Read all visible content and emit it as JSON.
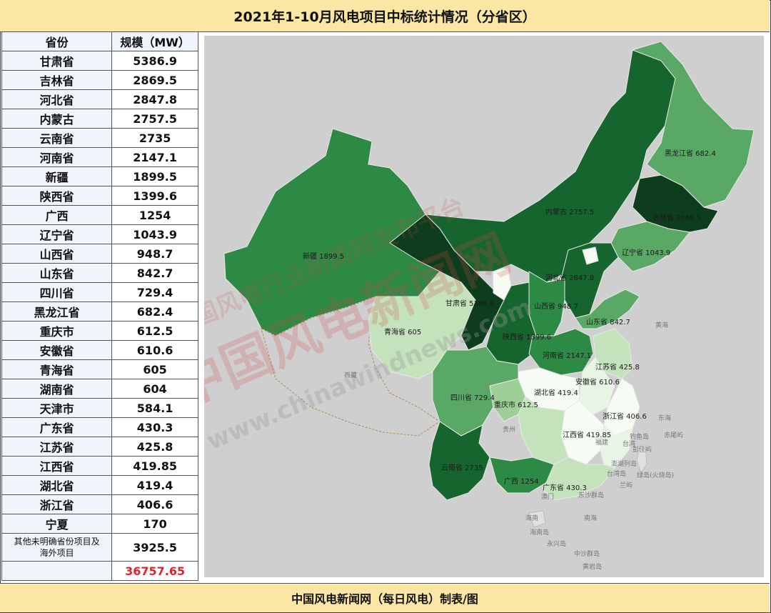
{
  "title": "2021年1-10月风电项目中标统计情况（分省区）",
  "footer": "中国风电新闻网（每日风电）制表/图",
  "table": {
    "col_province": "省份",
    "col_scale": "规模（MW）",
    "rows": [
      {
        "province": "甘肃省",
        "value": "5386.9"
      },
      {
        "province": "吉林省",
        "value": "2869.5"
      },
      {
        "province": "河北省",
        "value": "2847.8"
      },
      {
        "province": "内蒙古",
        "value": "2757.5"
      },
      {
        "province": "云南省",
        "value": "2735"
      },
      {
        "province": "河南省",
        "value": "2147.1"
      },
      {
        "province": "新疆",
        "value": "1899.5"
      },
      {
        "province": "陕西省",
        "value": "1399.6"
      },
      {
        "province": "广西",
        "value": "1254"
      },
      {
        "province": "辽宁省",
        "value": "1043.9"
      },
      {
        "province": "山西省",
        "value": "948.7"
      },
      {
        "province": "山东省",
        "value": "842.7"
      },
      {
        "province": "四川省",
        "value": "729.4"
      },
      {
        "province": "黑龙江省",
        "value": "682.4"
      },
      {
        "province": "重庆市",
        "value": "612.5"
      },
      {
        "province": "安徽省",
        "value": "610.6"
      },
      {
        "province": "青海省",
        "value": "605"
      },
      {
        "province": "湖南省",
        "value": "604"
      },
      {
        "province": "天津市",
        "value": "584.1"
      },
      {
        "province": "广东省",
        "value": "430.3"
      },
      {
        "province": "江苏省",
        "value": "425.8"
      },
      {
        "province": "江西省",
        "value": "419.85"
      },
      {
        "province": "湖北省",
        "value": "419.4"
      },
      {
        "province": "浙江省",
        "value": "406.6"
      },
      {
        "province": "宁夏",
        "value": "170"
      }
    ],
    "other_label_line1": "其他未明确省份项目及",
    "other_label_line2": "海外项目",
    "other_value": "3925.5",
    "total_label": "",
    "total_value": "36757.65"
  },
  "map": {
    "labels": {
      "xinjiang": "新疆 1899.5",
      "qinghai": "青海省 605",
      "gansu": "甘肃省 5386.9",
      "neimenggu": "内蒙古 2757.5",
      "heilongjiang": "黑龙江省 682.4",
      "jilin": "吉林省 2869.5",
      "liaoning": "辽宁省 1043.9",
      "hebei": "河北省 2847.8",
      "shanxi": "山西省 948.7",
      "shandong": "山东省 842.7",
      "shaanxi": "陕西省 1399.6",
      "henan": "河南省 2147.1",
      "jiangsu": "江苏省 425.8",
      "anhui": "安徽省 610.6",
      "hubei": "湖北省 419.4",
      "chongqing": "重庆市 612.5",
      "sichuan": "四川省 729.4",
      "zhejiang": "浙江省 406.6",
      "jiangxi": "江西省 419.85",
      "yunnan": "云南省 2735",
      "guangxi": "广西 1254",
      "guangdong": "广东省 430.3"
    },
    "reference_labels": {
      "xizang": "西藏",
      "guizhou": "贵州",
      "huanghai": "黄海",
      "donghai": "东海",
      "fujian": "福建",
      "taiwan": "台湾",
      "diaoyu": "钓鱼岛",
      "chiwei": "赤尾屿",
      "pengjia": "彭佳屿",
      "penghu": "澎湖列岛",
      "lanyu": "兰屿",
      "lvdao": "绿岛(火烧岛)",
      "taiwan_island": "台湾岛",
      "dongsha": "东沙群岛",
      "aomen": "澳门",
      "hainan": "海南",
      "hainan_dao": "海南岛",
      "nanhai": "南海",
      "yongxing": "永兴岛",
      "zhongsha": "中沙群岛",
      "huangyan": "黄岩岛"
    },
    "watermark_top": "中国风电行业新闻网发布平台",
    "watermark_main": "中国风电新闻网",
    "watermark_url": "www.chinawindnews.com",
    "colors": {
      "background": "#cfcfcf",
      "darkest": "#0d3d1c",
      "dark": "#17652e",
      "mid_dark": "#2c8a44",
      "mid": "#5aa865",
      "light": "#9dcf97",
      "lighter": "#c4e3bc",
      "lightest": "#e8f4e4",
      "white": "#f6fbf4"
    }
  }
}
